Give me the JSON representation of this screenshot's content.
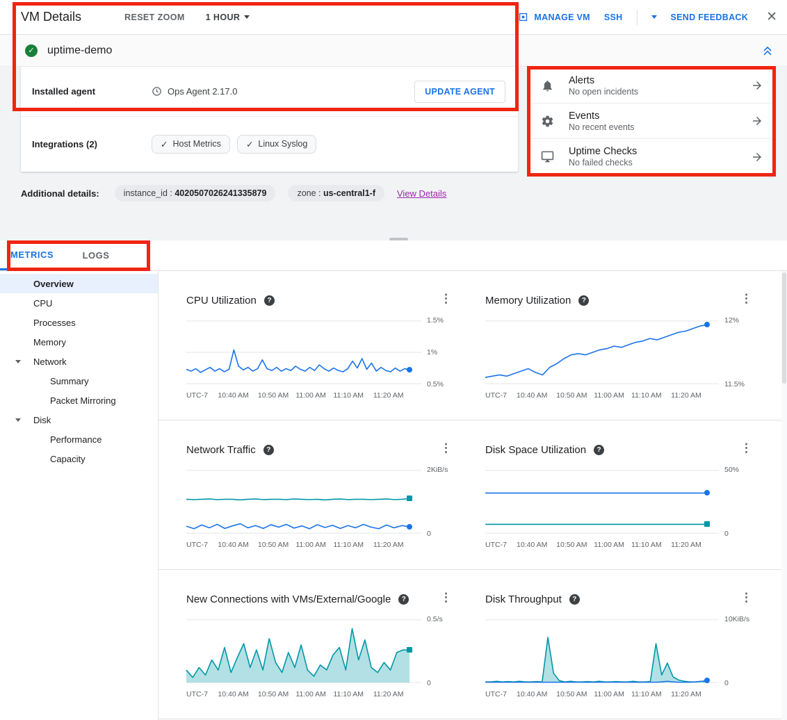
{
  "colors": {
    "accent_blue": "#1a73e8",
    "teal": "#0097a7",
    "green": "#188038",
    "link_purple": "#9c27b0",
    "annotation_red": "#ef2512",
    "text_dark": "#202124",
    "text_secondary": "#5f6368",
    "selected_bg": "#e8f0fe",
    "border": "#e0e0e0",
    "chip_bg": "#e9eaed",
    "page_bg": "#f1f3f4"
  },
  "header": {
    "title": "VM Details",
    "reset_zoom_label": "RESET ZOOM",
    "time_range_label": "1 HOUR",
    "manage_vm_label": "MANAGE VM",
    "ssh_label": "SSH",
    "send_feedback_label": "SEND FEEDBACK"
  },
  "vm": {
    "name": "uptime-demo",
    "installed_agent_label": "Installed agent",
    "agent_version": "Ops Agent 2.17.0",
    "update_agent_label": "UPDATE AGENT",
    "integrations_label": "Integrations (2)",
    "integrations": [
      "Host Metrics",
      "Linux Syslog"
    ]
  },
  "status_panel": {
    "items": [
      {
        "title": "Alerts",
        "subtitle": "No open incidents"
      },
      {
        "title": "Events",
        "subtitle": "No recent events"
      },
      {
        "title": "Uptime Checks",
        "subtitle": "No failed checks"
      }
    ]
  },
  "additional_details": {
    "label": "Additional details:",
    "chips": [
      {
        "key": "instance_id : ",
        "value": "4020507026241335879"
      },
      {
        "key": "zone : ",
        "value": "us-central1-f"
      }
    ],
    "link": "View Details"
  },
  "tabs": [
    {
      "label": "METRICS"
    },
    {
      "label": "LOGS"
    }
  ],
  "sidebar": {
    "items": [
      {
        "label": "Overview"
      },
      {
        "label": "CPU"
      },
      {
        "label": "Processes"
      },
      {
        "label": "Memory"
      },
      {
        "label": "Network"
      },
      {
        "label": "Summary"
      },
      {
        "label": "Packet Mirroring"
      },
      {
        "label": "Disk"
      },
      {
        "label": "Performance"
      },
      {
        "label": "Capacity"
      }
    ]
  },
  "chart_x_ticks": [
    "UTC-7",
    "10:40 AM",
    "10:50 AM",
    "11:00 AM",
    "11:10 AM",
    "11:20 AM"
  ],
  "chart_data": [
    {
      "type": "line",
      "title": "CPU Utilization",
      "ylabel": "%",
      "y_labels": [
        "1.5%",
        "1%",
        "0.5%"
      ],
      "ylim": [
        0.5,
        1.5
      ],
      "series": [
        {
          "name": "cpu",
          "color": "#1a73e8",
          "marker": "dot",
          "values": [
            0.73,
            0.7,
            0.74,
            0.68,
            0.72,
            0.76,
            0.7,
            0.74,
            0.69,
            0.73,
            1.04,
            0.78,
            0.72,
            0.76,
            0.7,
            0.74,
            0.88,
            0.74,
            0.71,
            0.76,
            0.7,
            0.74,
            0.71,
            0.78,
            0.73,
            0.7,
            0.76,
            0.71,
            0.8,
            0.74,
            0.7,
            0.75,
            0.71,
            0.69,
            0.74,
            0.86,
            0.75,
            0.9,
            0.73,
            0.83,
            0.7,
            0.76,
            0.71,
            0.69,
            0.75,
            0.7,
            0.74,
            0.72
          ]
        }
      ]
    },
    {
      "type": "line",
      "title": "Memory Utilization",
      "ylabel": "%",
      "y_labels": [
        "12%",
        "11.5%"
      ],
      "ylim": [
        11.5,
        12
      ],
      "series": [
        {
          "name": "memory",
          "color": "#1a73e8",
          "marker": "dot",
          "values": [
            11.55,
            11.56,
            11.57,
            11.56,
            11.58,
            11.6,
            11.62,
            11.59,
            11.57,
            11.63,
            11.66,
            11.7,
            11.73,
            11.74,
            11.73,
            11.75,
            11.77,
            11.78,
            11.8,
            11.79,
            11.81,
            11.83,
            11.84,
            11.86,
            11.85,
            11.87,
            11.89,
            11.91,
            11.92,
            11.94,
            11.96,
            11.97
          ]
        }
      ]
    },
    {
      "type": "line",
      "title": "Network Traffic",
      "ylabel": "KiB/s",
      "y_labels": [
        "2KiB/s",
        "0"
      ],
      "ylim": [
        0,
        2
      ],
      "series": [
        {
          "name": "received",
          "color": "#0097a7",
          "marker": "square",
          "values": [
            1.08,
            1.07,
            1.08,
            1.09,
            1.07,
            1.08,
            1.08,
            1.06,
            1.08,
            1.09,
            1.07,
            1.08,
            1.08,
            1.07,
            1.09,
            1.08,
            1.07,
            1.08,
            1.06,
            1.08,
            1.09,
            1.07,
            1.08,
            1.08,
            1.07,
            1.08,
            1.09,
            1.07,
            1.08,
            1.1
          ]
        },
        {
          "name": "sent",
          "color": "#1a73e8",
          "marker": "dot",
          "values": [
            0.22,
            0.14,
            0.26,
            0.17,
            0.28,
            0.15,
            0.23,
            0.3,
            0.17,
            0.24,
            0.15,
            0.27,
            0.19,
            0.28,
            0.16,
            0.23,
            0.14,
            0.27,
            0.18,
            0.25,
            0.15,
            0.24,
            0.17,
            0.28,
            0.19,
            0.14,
            0.26,
            0.17,
            0.24,
            0.2
          ]
        }
      ]
    },
    {
      "type": "line",
      "title": "Disk Space Utilization",
      "ylabel": "%",
      "y_labels": [
        "50%",
        "0"
      ],
      "ylim": [
        0,
        50
      ],
      "series": [
        {
          "name": "used",
          "color": "#1a73e8",
          "marker": "dot",
          "values": [
            32,
            32,
            32,
            32,
            32,
            32,
            32,
            32,
            32,
            32,
            32,
            32
          ]
        },
        {
          "name": "free",
          "color": "#0097a7",
          "marker": "square",
          "values": [
            7,
            7,
            7,
            7,
            7,
            7,
            7,
            7,
            7,
            7,
            7,
            7
          ]
        }
      ]
    },
    {
      "type": "area",
      "title": "New Connections with VMs/External/Google",
      "ylabel": "/s",
      "y_labels": [
        "0.5/s",
        "0"
      ],
      "ylim": [
        0,
        0.5
      ],
      "series": [
        {
          "name": "connections",
          "color": "#0097a7",
          "marker": "square",
          "area": true,
          "values": [
            0.1,
            0.04,
            0.12,
            0.06,
            0.18,
            0.1,
            0.28,
            0.08,
            0.2,
            0.31,
            0.12,
            0.26,
            0.1,
            0.35,
            0.16,
            0.08,
            0.24,
            0.12,
            0.3,
            0.1,
            0.05,
            0.14,
            0.1,
            0.22,
            0.28,
            0.1,
            0.43,
            0.18,
            0.34,
            0.12,
            0.08,
            0.16,
            0.1,
            0.24,
            0.26,
            0.26
          ]
        }
      ]
    },
    {
      "type": "area",
      "title": "Disk Throughput",
      "ylabel": "KiB/s",
      "y_labels": [
        "10KiB/s",
        "0"
      ],
      "ylim": [
        0,
        10
      ],
      "series": [
        {
          "name": "read",
          "color": "#0097a7",
          "marker": "none",
          "area": true,
          "values": [
            0.1,
            0.1,
            0.2,
            0.1,
            0.15,
            0.1,
            0.2,
            0.1,
            0.1,
            0.15,
            0.1,
            7.2,
            1.5,
            0.3,
            0.1,
            0.2,
            0.1,
            0.1,
            0.15,
            0.1,
            0.2,
            0.1,
            0.1,
            0.15,
            0.1,
            0.1,
            0.2,
            0.1,
            0.1,
            0.15,
            6.2,
            1.2,
            3.1,
            0.9,
            0.4,
            0.2,
            0.1,
            0.1,
            0.2,
            0.1
          ]
        },
        {
          "name": "write",
          "color": "#1a73e8",
          "marker": "dot",
          "values": [
            0.05,
            0.05,
            0.05,
            0.05,
            0.05,
            0.05,
            0.05,
            0.05,
            0.05,
            0.05,
            0.05,
            0.05,
            0.05,
            0.05,
            0.05,
            0.05,
            0.05,
            0.05,
            0.05,
            0.05,
            0.05,
            0.05,
            0.05,
            0.05,
            0.05,
            0.05,
            0.05,
            0.05,
            0.05,
            0.05,
            0.05,
            0.1,
            0.2,
            0.1,
            0.05,
            0.05,
            0.05,
            0.1,
            0.2,
            0.3
          ]
        }
      ]
    }
  ]
}
